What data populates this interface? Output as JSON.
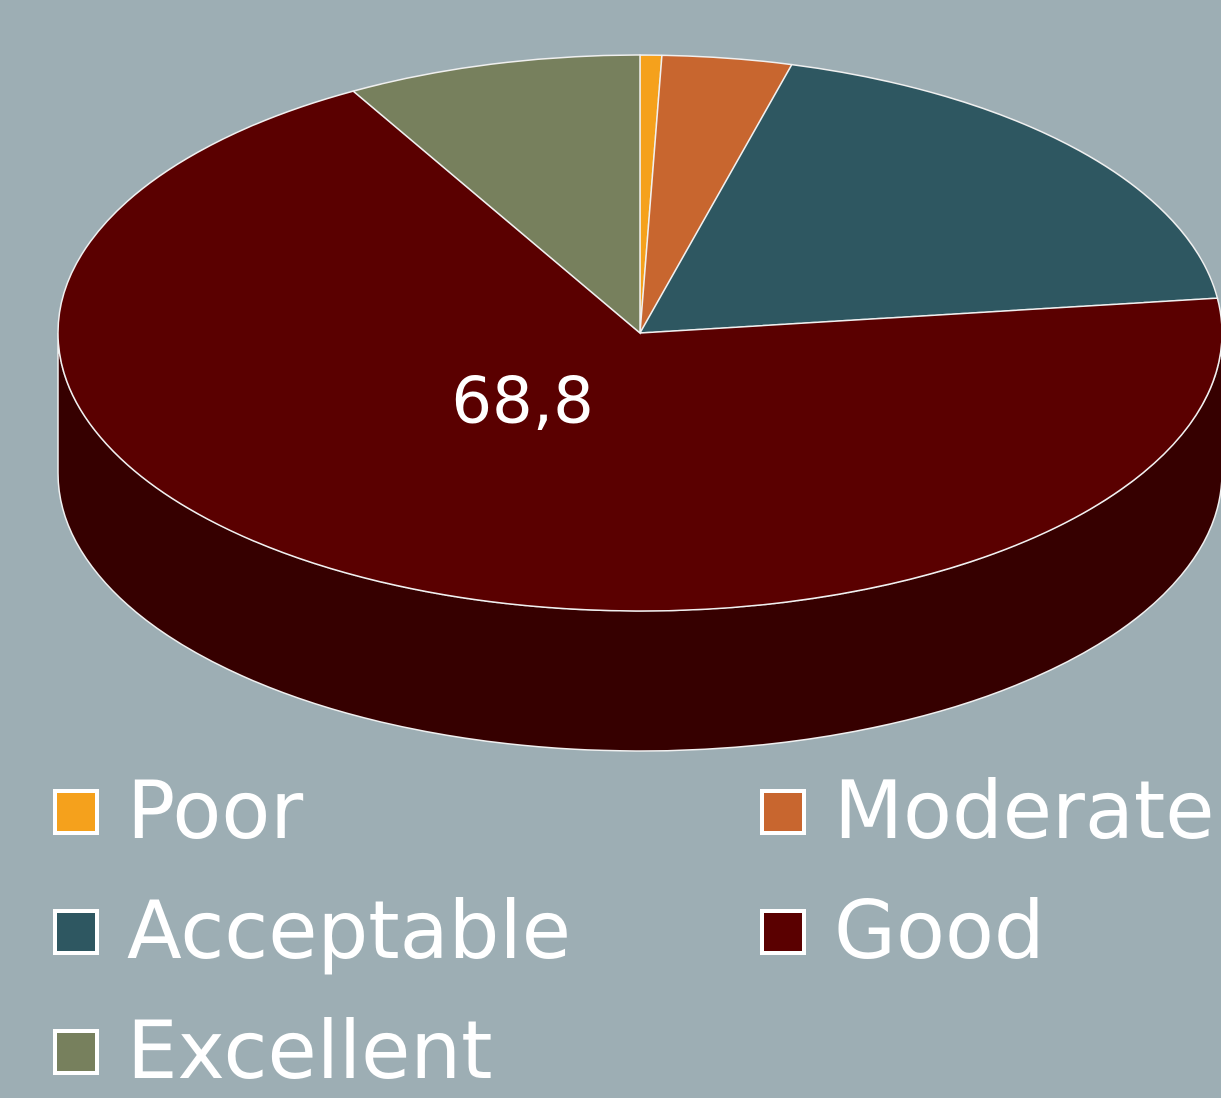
{
  "chart_data": {
    "type": "pie3d",
    "categories": [
      "Poor",
      "Moderate",
      "Acceptable",
      "Good",
      "Excellent"
    ],
    "values": [
      0.6,
      3.6,
      18.8,
      68.8,
      8.2
    ],
    "value_labels": [
      null,
      null,
      null,
      "68,8",
      null
    ],
    "colors": [
      "#f5a11c",
      "#c8662f",
      "#2e5761",
      "#5a0000",
      "#77805d"
    ],
    "legend": "bottom"
  }
}
